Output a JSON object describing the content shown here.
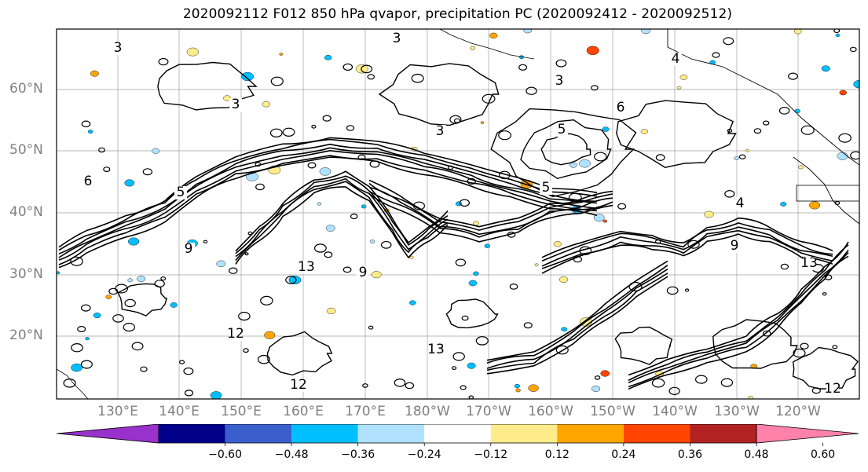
{
  "title": "2020092112 F012 850 hPa qvapor, precipitation PC (2020092412 - 2020092512)",
  "lat_labels": [
    {
      "text": "60°N",
      "value": 60
    },
    {
      "text": "50°N",
      "value": 50
    },
    {
      "text": "40°N",
      "value": 40
    },
    {
      "text": "30°N",
      "value": 30
    },
    {
      "text": "20°N",
      "value": 20
    }
  ],
  "lon_labels": [
    "130°E",
    "140°E",
    "150°E",
    "160°E",
    "170°E",
    "180°W",
    "170°W",
    "160°W",
    "150°W",
    "140°W",
    "130°W",
    "120°W"
  ],
  "colorbar": {
    "colors": [
      "#9932cc",
      "#00008b",
      "#3a5fcd",
      "#00bfff",
      "#b0e2ff",
      "#ffffff",
      "#ffec8b",
      "#ffa500",
      "#ff4500",
      "#b22222",
      "#ff82ab"
    ],
    "ticks": [
      "−0.60",
      "−0.48",
      "−0.36",
      "−0.24",
      "−0.12",
      "0.12",
      "0.24",
      "0.36",
      "0.48",
      "0.60"
    ]
  },
  "contour_labels": [
    "3",
    "3",
    "3",
    "3",
    "3",
    "4",
    "4",
    "5",
    "5",
    "5",
    "6",
    "6",
    "9",
    "9",
    "9",
    "12",
    "12",
    "12",
    "13",
    "13",
    "13"
  ],
  "map_colors": {
    "contour": "#000000",
    "grid": "#a0a0a0",
    "coast": "#000000"
  }
}
